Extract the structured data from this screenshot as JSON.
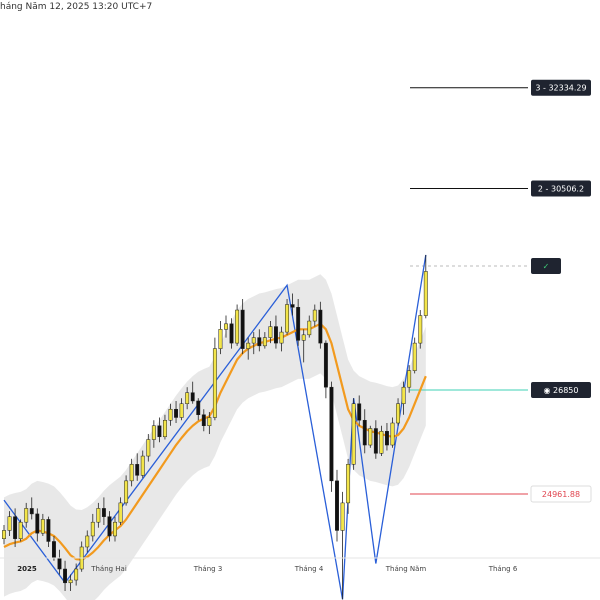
{
  "header": {
    "datetime": "háng Năm 12, 2025 13:20 UTC+7"
  },
  "colors": {
    "up_candle": "#f3e54a",
    "down_candle": "#111111",
    "ma_line": "#f29a1e",
    "zigzag": "#2a5fd8",
    "band": "#d6d6d6",
    "level_line": "#111111",
    "target_line": "#3fd1b5",
    "stop_line": "#e0454f"
  },
  "chart_data": {
    "type": "candlestick",
    "title": "",
    "xlabel": "",
    "ylabel": "",
    "ylim": [
      23800,
      33600
    ],
    "x_ticks": [
      "2025",
      "Tháng Hai",
      "Tháng 3",
      "Tháng 4",
      "Tháng Năm",
      "Tháng 6"
    ],
    "levels": [
      {
        "id": "level-3",
        "label": "3 - 32334.29",
        "value": 32334.29,
        "color": "#111111"
      },
      {
        "id": "level-2",
        "label": "2 - 30506.2",
        "value": 30506.2,
        "color": "#111111"
      },
      {
        "id": "entry",
        "label": "✓",
        "value": 29100,
        "color": "#111111"
      },
      {
        "id": "target",
        "label": "◉ 26850",
        "value": 26850,
        "color": "#3fd1b5"
      },
      {
        "id": "stop",
        "label": "24961.88",
        "value": 24961.88,
        "color": "#e0454f"
      }
    ],
    "ohlc": [
      [
        0,
        24150,
        24400,
        24050,
        24300
      ],
      [
        1,
        24300,
        24650,
        24200,
        24550
      ],
      [
        2,
        24550,
        24700,
        24000,
        24150
      ],
      [
        3,
        24150,
        24500,
        24100,
        24450
      ],
      [
        4,
        24450,
        24800,
        24350,
        24700
      ],
      [
        5,
        24700,
        24900,
        24500,
        24600
      ],
      [
        6,
        24600,
        24700,
        24100,
        24250
      ],
      [
        7,
        24250,
        24600,
        24200,
        24500
      ],
      [
        8,
        24500,
        24550,
        24000,
        24100
      ],
      [
        9,
        24100,
        24200,
        23750,
        23800
      ],
      [
        10,
        23800,
        23950,
        23500,
        23600
      ],
      [
        11,
        23600,
        23750,
        23200,
        23350
      ],
      [
        12,
        23350,
        23500,
        23200,
        23400
      ],
      [
        13,
        23400,
        23700,
        23300,
        23600
      ],
      [
        14,
        23600,
        24100,
        23550,
        24000
      ],
      [
        15,
        24000,
        24300,
        23900,
        24200
      ],
      [
        16,
        24200,
        24600,
        24100,
        24450
      ],
      [
        17,
        24450,
        24800,
        24350,
        24700
      ],
      [
        18,
        24700,
        24900,
        24400,
        24550
      ],
      [
        19,
        24550,
        24650,
        24100,
        24200
      ],
      [
        20,
        24200,
        24550,
        24100,
        24450
      ],
      [
        21,
        24450,
        24900,
        24400,
        24800
      ],
      [
        22,
        24800,
        25300,
        24750,
        25200
      ],
      [
        23,
        25200,
        25600,
        25100,
        25500
      ],
      [
        24,
        25500,
        25700,
        25200,
        25300
      ],
      [
        25,
        25300,
        25750,
        25250,
        25650
      ],
      [
        26,
        25650,
        26050,
        25550,
        25950
      ],
      [
        27,
        25950,
        26300,
        25800,
        26200
      ],
      [
        28,
        26200,
        26350,
        25900,
        26000
      ],
      [
        29,
        26000,
        26400,
        25950,
        26300
      ],
      [
        30,
        26300,
        26600,
        26200,
        26500
      ],
      [
        31,
        26500,
        26650,
        26250,
        26350
      ],
      [
        32,
        26350,
        26700,
        26300,
        26600
      ],
      [
        33,
        26600,
        26900,
        26500,
        26800
      ],
      [
        34,
        26800,
        27000,
        26600,
        26650
      ],
      [
        35,
        26650,
        26700,
        26300,
        26400
      ],
      [
        36,
        26400,
        26500,
        26100,
        26200
      ],
      [
        37,
        26200,
        26450,
        26050,
        26350
      ],
      [
        38,
        26350,
        27800,
        26300,
        27600
      ],
      [
        39,
        27600,
        28100,
        27500,
        27950
      ],
      [
        40,
        27950,
        28200,
        27800,
        28050
      ],
      [
        41,
        28050,
        28150,
        27600,
        27700
      ],
      [
        42,
        27700,
        28400,
        27650,
        28300
      ],
      [
        43,
        28300,
        28500,
        27500,
        27600
      ],
      [
        44,
        27600,
        27800,
        27400,
        27700
      ],
      [
        45,
        27700,
        27900,
        27500,
        27800
      ],
      [
        46,
        27800,
        27950,
        27550,
        27650
      ],
      [
        47,
        27650,
        27900,
        27600,
        27800
      ],
      [
        48,
        27800,
        28100,
        27700,
        28000
      ],
      [
        49,
        28000,
        28200,
        27600,
        27700
      ],
      [
        50,
        27700,
        28000,
        27550,
        27900
      ],
      [
        51,
        27900,
        28500,
        27850,
        28400
      ],
      [
        52,
        28400,
        28600,
        28200,
        28350
      ],
      [
        53,
        28350,
        28500,
        27650,
        27750
      ],
      [
        54,
        27750,
        27950,
        27350,
        27850
      ],
      [
        55,
        27850,
        28200,
        27800,
        28100
      ],
      [
        56,
        28100,
        28400,
        28000,
        28300
      ],
      [
        57,
        28300,
        28450,
        27600,
        27700
      ],
      [
        58,
        27700,
        27750,
        26700,
        26900
      ],
      [
        59,
        26900,
        27000,
        25000,
        25200
      ],
      [
        60,
        25200,
        25400,
        24100,
        24300
      ],
      [
        61,
        24300,
        25000,
        23050,
        24800
      ],
      [
        62,
        24800,
        25600,
        24600,
        25500
      ],
      [
        63,
        25500,
        26700,
        25400,
        26600
      ],
      [
        64,
        26600,
        26750,
        26200,
        26300
      ],
      [
        65,
        26300,
        26500,
        25700,
        25850
      ],
      [
        66,
        25850,
        26200,
        25800,
        26150
      ],
      [
        67,
        26150,
        26300,
        25600,
        25700
      ],
      [
        68,
        25700,
        26200,
        25650,
        26100
      ],
      [
        69,
        26100,
        26250,
        25750,
        25850
      ],
      [
        70,
        25850,
        26350,
        25800,
        26250
      ],
      [
        71,
        26250,
        26700,
        26200,
        26600
      ],
      [
        72,
        26600,
        27000,
        26400,
        26900
      ],
      [
        73,
        26900,
        27300,
        26800,
        27200
      ],
      [
        74,
        27200,
        27800,
        27150,
        27700
      ],
      [
        75,
        27700,
        28300,
        27600,
        28200
      ],
      [
        76,
        28200,
        29300,
        28150,
        29000
      ]
    ],
    "ma": [
      24000,
      24050,
      24080,
      24100,
      24150,
      24250,
      24300,
      24280,
      24250,
      24200,
      24100,
      23980,
      23850,
      23780,
      23770,
      23820,
      23900,
      24000,
      24120,
      24220,
      24300,
      24380,
      24500,
      24650,
      24800,
      24950,
      25100,
      25250,
      25400,
      25550,
      25700,
      25850,
      25980,
      26100,
      26200,
      26280,
      26330,
      26370,
      26550,
      26800,
      27000,
      27200,
      27400,
      27520,
      27600,
      27650,
      27700,
      27720,
      27750,
      27780,
      27800,
      27850,
      27900,
      27950,
      27950,
      27950,
      28000,
      28050,
      27950,
      27700,
      27300,
      26900,
      26500,
      26300,
      26200,
      26150,
      26100,
      26080,
      26050,
      26020,
      26000,
      26030,
      26150,
      26350,
      26600,
      26850,
      27100
    ],
    "zigzag": [
      [
        0,
        24850
      ],
      [
        11,
        23350
      ],
      [
        51,
        28750
      ],
      [
        61,
        23050
      ],
      [
        63,
        26700
      ],
      [
        67,
        23700
      ],
      [
        76,
        29300
      ]
    ]
  }
}
